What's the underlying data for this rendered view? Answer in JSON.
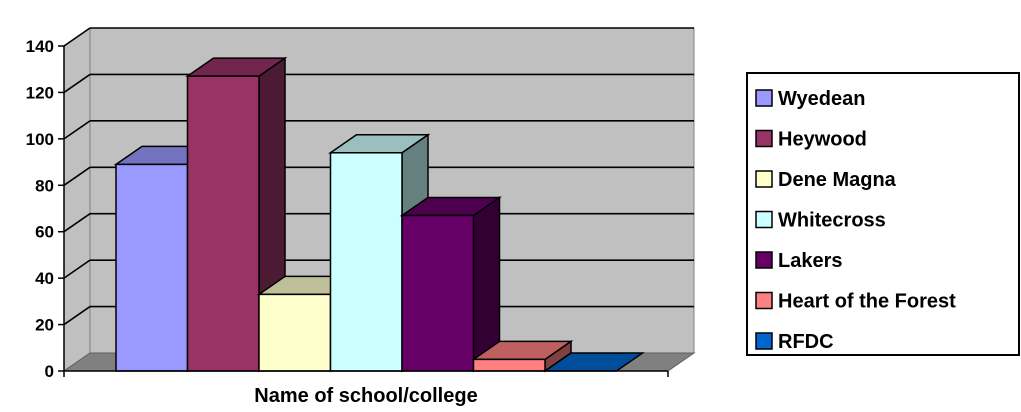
{
  "chart_data": {
    "type": "bar",
    "style": "3d-column",
    "categories": [
      "Wyedean",
      "Heywood",
      "Dene Magna",
      "Whitecross",
      "Lakers",
      "Heart of the Forest",
      "RFDC"
    ],
    "values": [
      89,
      127,
      33,
      94,
      67,
      5,
      0
    ],
    "colors": [
      "#9999FF",
      "#993366",
      "#FFFFCC",
      "#CCFFFF",
      "#660066",
      "#FF8080",
      "#0066CC"
    ],
    "xlabel": "Name of school/college",
    "ylabel": "",
    "ylim": [
      0,
      140
    ],
    "yticks": [
      0,
      20,
      40,
      60,
      80,
      100,
      120,
      140
    ],
    "grid": true,
    "plot_background": "#C0C0C0",
    "legend_position": "right"
  }
}
